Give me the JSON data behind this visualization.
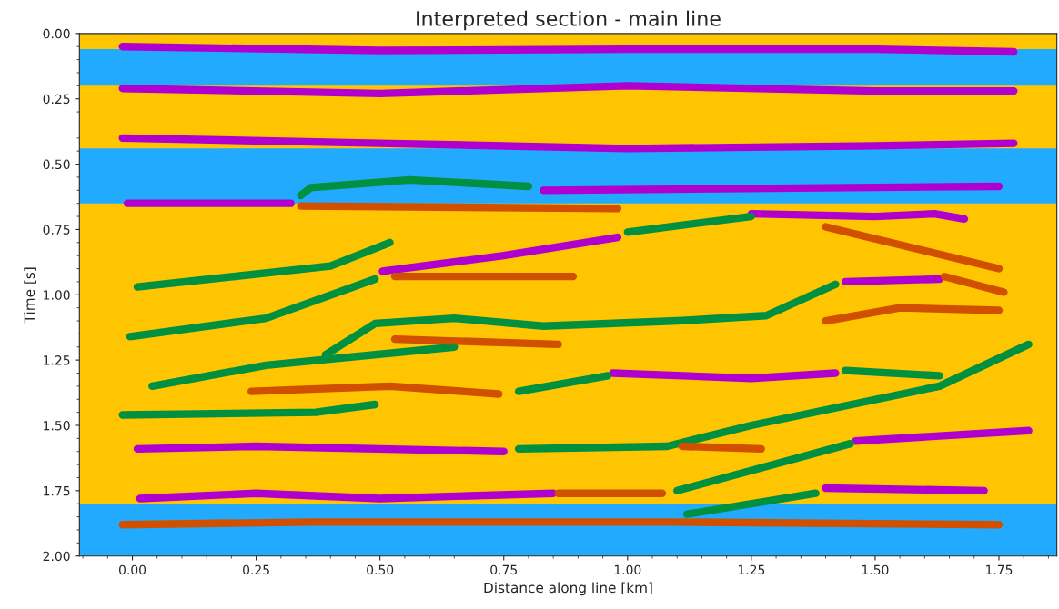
{
  "chart_data": {
    "type": "line",
    "title": "Interpreted section - main line",
    "xlabel": "Distance along line [km]",
    "ylabel": "Time [s]",
    "xlim": [
      -0.107,
      1.867
    ],
    "ylim": [
      2.0,
      0.0
    ],
    "xticks": [
      {
        "value": 0,
        "label": "0.00"
      },
      0.25,
      {
        "value": 0.5,
        "label": "0.50"
      },
      0.75,
      {
        "value": 1,
        "label": "1.00"
      },
      1.25,
      {
        "value": 1.5,
        "label": "1.50"
      },
      1.75
    ],
    "yticks": [
      {
        "value": 0,
        "label": "0.00"
      },
      0.25,
      {
        "value": 0.5,
        "label": "0.50"
      },
      0.75,
      {
        "value": 1,
        "label": "1.00"
      },
      1.25,
      {
        "value": 1.5,
        "label": "1.50"
      },
      1.75,
      {
        "value": 2,
        "label": "2.00"
      }
    ],
    "grid": false,
    "legend": false,
    "marker": "none",
    "line_style": "solid",
    "bands": [
      {
        "axis": "y",
        "from": 0.0,
        "to": 2.0,
        "color": "#ffc500"
      },
      {
        "axis": "y",
        "from": 0.06,
        "to": 0.2,
        "color": "#22aaff"
      },
      {
        "axis": "y",
        "from": 0.44,
        "to": 0.65,
        "color": "#22aaff"
      },
      {
        "axis": "y",
        "from": 1.8,
        "to": 2.0,
        "color": "#22aaff"
      }
    ],
    "series": [
      {
        "color": "#b000d0",
        "x": [
          -0.02,
          0.5,
          1.0,
          1.5,
          1.78
        ],
        "values": [
          0.05,
          0.065,
          0.06,
          0.06,
          0.07
        ]
      },
      {
        "color": "#b000d0",
        "x": [
          -0.02,
          0.5,
          1.0,
          1.5,
          1.78
        ],
        "values": [
          0.21,
          0.23,
          0.2,
          0.22,
          0.22
        ]
      },
      {
        "color": "#b000d0",
        "x": [
          -0.02,
          0.5,
          1.0,
          1.5,
          1.78
        ],
        "values": [
          0.4,
          0.42,
          0.44,
          0.43,
          0.42
        ]
      },
      {
        "color": "#b000d0",
        "x": [
          -0.01,
          0.32
        ],
        "values": [
          0.65,
          0.65
        ]
      },
      {
        "color": "#b000d0",
        "x": [
          0.83,
          1.75
        ],
        "values": [
          0.6,
          0.585
        ]
      },
      {
        "color": "#b000d0",
        "x": [
          1.25,
          1.5,
          1.62,
          1.68
        ],
        "values": [
          0.69,
          0.7,
          0.69,
          0.71
        ]
      },
      {
        "color": "#b000d0",
        "x": [
          0.505,
          0.75,
          0.98
        ],
        "values": [
          0.91,
          0.85,
          0.78
        ]
      },
      {
        "color": "#b000d0",
        "x": [
          1.44,
          1.63
        ],
        "values": [
          0.95,
          0.94
        ]
      },
      {
        "color": "#b000d0",
        "x": [
          0.97,
          1.25,
          1.42
        ],
        "values": [
          1.3,
          1.32,
          1.3
        ]
      },
      {
        "color": "#b000d0",
        "x": [
          0.01,
          0.25,
          0.75
        ],
        "values": [
          1.59,
          1.58,
          1.6
        ]
      },
      {
        "color": "#b000d0",
        "x": [
          1.46,
          1.81
        ],
        "values": [
          1.56,
          1.52
        ]
      },
      {
        "color": "#b000d0",
        "x": [
          0.015,
          0.25,
          0.5,
          0.85
        ],
        "values": [
          1.78,
          1.76,
          1.78,
          1.76
        ]
      },
      {
        "color": "#b000d0",
        "x": [
          1.4,
          1.72
        ],
        "values": [
          1.74,
          1.75
        ]
      },
      {
        "color": "#009040",
        "x": [
          0.34,
          0.36,
          0.56,
          0.8
        ],
        "values": [
          0.62,
          0.59,
          0.56,
          0.585
        ]
      },
      {
        "color": "#009040",
        "x": [
          0.01,
          0.4,
          0.52
        ],
        "values": [
          0.97,
          0.89,
          0.8
        ]
      },
      {
        "color": "#009040",
        "x": [
          -0.005,
          0.27,
          0.49
        ],
        "values": [
          1.16,
          1.09,
          0.94
        ]
      },
      {
        "color": "#009040",
        "x": [
          1.0,
          1.25
        ],
        "values": [
          0.76,
          0.7
        ]
      },
      {
        "color": "#009040",
        "x": [
          0.39,
          0.49,
          0.65,
          0.83,
          1.1,
          1.28,
          1.42
        ],
        "values": [
          1.23,
          1.11,
          1.09,
          1.12,
          1.1,
          1.08,
          0.96
        ]
      },
      {
        "color": "#009040",
        "x": [
          0.04,
          0.27,
          0.65
        ],
        "values": [
          1.35,
          1.27,
          1.2
        ]
      },
      {
        "color": "#009040",
        "x": [
          0.78,
          0.96
        ],
        "values": [
          1.37,
          1.31
        ]
      },
      {
        "color": "#009040",
        "x": [
          1.44,
          1.63
        ],
        "values": [
          1.29,
          1.31
        ]
      },
      {
        "color": "#009040",
        "x": [
          -0.02,
          0.37,
          0.49
        ],
        "values": [
          1.46,
          1.45,
          1.42
        ]
      },
      {
        "color": "#009040",
        "x": [
          0.78,
          1.08,
          1.25,
          1.63,
          1.81
        ],
        "values": [
          1.59,
          1.58,
          1.5,
          1.35,
          1.19
        ]
      },
      {
        "color": "#009040",
        "x": [
          1.1,
          1.45
        ],
        "values": [
          1.75,
          1.57
        ]
      },
      {
        "color": "#009040",
        "x": [
          1.12,
          1.38
        ],
        "values": [
          1.84,
          1.76
        ]
      },
      {
        "color": "#d05000",
        "x": [
          0.34,
          0.98
        ],
        "values": [
          0.66,
          0.67
        ]
      },
      {
        "color": "#d05000",
        "x": [
          0.53,
          0.89
        ],
        "values": [
          0.93,
          0.93
        ]
      },
      {
        "color": "#d05000",
        "x": [
          1.4,
          1.75
        ],
        "values": [
          0.74,
          0.9
        ]
      },
      {
        "color": "#d05000",
        "x": [
          1.64,
          1.76
        ],
        "values": [
          0.93,
          0.99
        ]
      },
      {
        "color": "#d05000",
        "x": [
          1.4,
          1.55,
          1.75
        ],
        "values": [
          1.1,
          1.05,
          1.06
        ]
      },
      {
        "color": "#d05000",
        "x": [
          0.53,
          0.86
        ],
        "values": [
          1.17,
          1.19
        ]
      },
      {
        "color": "#d05000",
        "x": [
          0.24,
          0.52,
          0.74
        ],
        "values": [
          1.37,
          1.35,
          1.38
        ]
      },
      {
        "color": "#d05000",
        "x": [
          1.11,
          1.27
        ],
        "values": [
          1.58,
          1.59
        ]
      },
      {
        "color": "#d05000",
        "x": [
          0.86,
          1.07
        ],
        "values": [
          1.76,
          1.76
        ]
      },
      {
        "color": "#d05000",
        "x": [
          -0.02,
          0.36,
          1.09,
          1.75
        ],
        "values": [
          1.88,
          1.87,
          1.87,
          1.88
        ]
      }
    ]
  }
}
